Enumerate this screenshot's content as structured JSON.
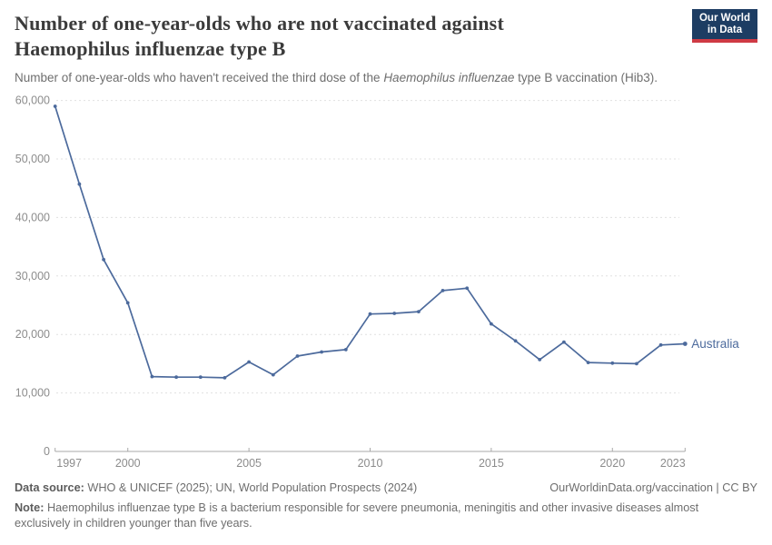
{
  "header": {
    "title_lines": [
      "Number of one-year-olds who are not vaccinated against",
      "Haemophilus influenzae type B"
    ],
    "subtitle_prefix": "Number of one-year-olds who haven't received the third dose of the ",
    "subtitle_italic": "Haemophilus influenzae",
    "subtitle_suffix": " type B vaccination (Hib3).",
    "logo": {
      "line1": "Our World",
      "line2": "in Data",
      "bg_color": "#1d3d63",
      "bar_color": "#cf3a44"
    }
  },
  "chart_data": {
    "type": "line",
    "title": "Number of one-year-olds who are not vaccinated against Haemophilus influenzae type B",
    "xlabel": "",
    "ylabel": "",
    "xlim": [
      1997,
      2023
    ],
    "ylim": [
      0,
      60000
    ],
    "xticks": [
      1997,
      2000,
      2005,
      2010,
      2015,
      2020,
      2023
    ],
    "yticks": [
      0,
      10000,
      20000,
      30000,
      40000,
      50000,
      60000
    ],
    "ytick_labels": [
      "0",
      "10,000",
      "20,000",
      "30,000",
      "40,000",
      "50,000",
      "60,000"
    ],
    "grid": "horizontal-dashed",
    "legend": "line-end-label",
    "line_color": "#4c6a9c",
    "grid_color": "#e0e0e0",
    "axis_color": "#a8a8a8",
    "series": [
      {
        "name": "Australia",
        "x": [
          1997,
          1998,
          1999,
          2000,
          2001,
          2002,
          2003,
          2004,
          2005,
          2006,
          2007,
          2008,
          2009,
          2010,
          2011,
          2012,
          2013,
          2014,
          2015,
          2016,
          2017,
          2018,
          2019,
          2020,
          2021,
          2022,
          2023
        ],
        "values": [
          59000,
          45700,
          32800,
          25400,
          12800,
          12700,
          12700,
          12600,
          15300,
          13100,
          16300,
          17000,
          17400,
          23500,
          23600,
          23900,
          27500,
          27900,
          21800,
          18900,
          15700,
          18700,
          15200,
          15100,
          15000,
          18200,
          18400
        ]
      }
    ]
  },
  "footer": {
    "datasource_label": "Data source:",
    "datasource_text": " WHO & UNICEF (2025); UN, World Population Prospects (2024)",
    "link_text": "OurWorldinData.org/vaccination | CC BY",
    "note_label": "Note:",
    "note_text": " Haemophilus influenzae type B is a bacterium responsible for severe pneumonia, meningitis and other invasive diseases almost exclusively in children younger than five years."
  }
}
